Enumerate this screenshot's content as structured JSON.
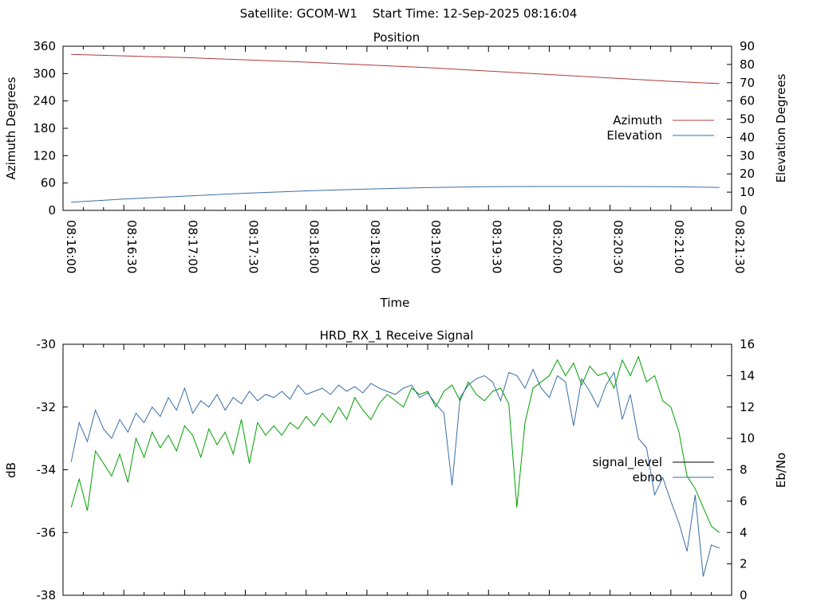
{
  "header": {
    "title": "Satellite: GCOM-W1    Start Time: 12-Sep-2025 08:16:04"
  },
  "colors": {
    "azimuth": "#b03a3a",
    "elevation": "#3a6ea5",
    "signal_level": "#00a000",
    "ebno": "#3a6ea5",
    "legend_signal": "#000000"
  },
  "chart_data": [
    {
      "type": "line",
      "title": "Position",
      "xlabel": "Time",
      "ylabel": "Azimuth Degrees",
      "y2label": "Elevation Degrees",
      "xlim": [
        0,
        330
      ],
      "ylim": [
        0,
        360
      ],
      "y2lim": [
        0,
        90
      ],
      "x_tick_labels": [
        "08:16:00",
        "08:16:30",
        "08:17:00",
        "08:17:30",
        "08:18:00",
        "08:18:30",
        "08:19:00",
        "08:19:30",
        "08:20:00",
        "08:20:30",
        "08:21:00",
        "08:21:30"
      ],
      "y_tick_labels": [
        "0",
        "60",
        "120",
        "180",
        "240",
        "300",
        "360"
      ],
      "y2_tick_labels": [
        "0",
        "10",
        "20",
        "30",
        "40",
        "50",
        "60",
        "70",
        "80",
        "90"
      ],
      "legend_position": "right",
      "series": [
        {
          "name": "Azimuth",
          "axis": "y",
          "x": [
            4,
            60,
            120,
            180,
            240,
            300,
            324
          ],
          "y": [
            342,
            335,
            325,
            313,
            298,
            283,
            278
          ]
        },
        {
          "name": "Elevation",
          "axis": "y2",
          "x": [
            4,
            30,
            60,
            90,
            120,
            150,
            180,
            210,
            240,
            270,
            300,
            324
          ],
          "y": [
            4.5,
            6.2,
            7.8,
            9.4,
            10.7,
            11.7,
            12.5,
            13.0,
            13.1,
            13.1,
            13.0,
            12.6
          ]
        }
      ]
    },
    {
      "type": "line",
      "title": "HRD_RX_1 Receive Signal",
      "xlabel": "",
      "ylabel": "dB",
      "y2label": "Eb/No",
      "xlim": [
        0,
        330
      ],
      "ylim": [
        -38,
        -30
      ],
      "y2lim": [
        0,
        16
      ],
      "y_tick_labels": [
        "-38",
        "-36",
        "-34",
        "-32",
        "-30"
      ],
      "y2_tick_labels": [
        "0",
        "2",
        "4",
        "6",
        "8",
        "10",
        "12",
        "14",
        "16"
      ],
      "legend_position": "right",
      "series": [
        {
          "name": "signal_level",
          "axis": "y",
          "x": [
            4,
            8,
            12,
            16,
            20,
            24,
            28,
            32,
            36,
            40,
            44,
            48,
            52,
            56,
            60,
            64,
            68,
            72,
            76,
            80,
            84,
            88,
            92,
            96,
            100,
            104,
            108,
            112,
            116,
            120,
            124,
            128,
            132,
            136,
            140,
            144,
            148,
            152,
            156,
            160,
            164,
            168,
            172,
            176,
            180,
            184,
            188,
            192,
            196,
            200,
            204,
            208,
            212,
            216,
            220,
            224,
            228,
            232,
            236,
            240,
            244,
            248,
            252,
            256,
            260,
            264,
            268,
            272,
            276,
            280,
            284,
            288,
            292,
            296,
            300,
            304,
            308,
            312,
            316,
            320,
            324
          ],
          "y": [
            -35.2,
            -34.3,
            -35.3,
            -33.4,
            -33.8,
            -34.2,
            -33.5,
            -34.4,
            -33.0,
            -33.6,
            -32.8,
            -33.3,
            -32.9,
            -33.4,
            -32.6,
            -32.9,
            -33.6,
            -32.7,
            -33.2,
            -32.8,
            -33.5,
            -32.4,
            -33.8,
            -32.5,
            -32.9,
            -32.6,
            -32.9,
            -32.5,
            -32.7,
            -32.3,
            -32.6,
            -32.2,
            -32.5,
            -32.0,
            -32.4,
            -31.7,
            -32.1,
            -32.4,
            -31.9,
            -31.6,
            -31.8,
            -32.0,
            -31.4,
            -31.6,
            -31.5,
            -32.0,
            -31.5,
            -31.3,
            -31.8,
            -31.2,
            -31.6,
            -31.8,
            -31.5,
            -31.4,
            -31.9,
            -35.2,
            -32.5,
            -31.4,
            -31.2,
            -31.0,
            -30.5,
            -31.0,
            -30.6,
            -31.3,
            -30.7,
            -31.0,
            -30.9,
            -31.4,
            -30.5,
            -31.0,
            -30.4,
            -31.2,
            -31.0,
            -31.8,
            -32.0,
            -32.8,
            -34.2,
            -34.6,
            -35.2,
            -35.8,
            -36.0
          ]
        },
        {
          "name": "ebno",
          "axis": "y2",
          "x": [
            4,
            8,
            12,
            16,
            20,
            24,
            28,
            32,
            36,
            40,
            44,
            48,
            52,
            56,
            60,
            64,
            68,
            72,
            76,
            80,
            84,
            88,
            92,
            96,
            100,
            104,
            108,
            112,
            116,
            120,
            124,
            128,
            132,
            136,
            140,
            144,
            148,
            152,
            156,
            160,
            164,
            168,
            172,
            176,
            180,
            184,
            188,
            192,
            196,
            200,
            204,
            208,
            212,
            216,
            220,
            224,
            228,
            232,
            236,
            240,
            244,
            248,
            252,
            256,
            260,
            264,
            268,
            272,
            276,
            280,
            284,
            288,
            292,
            296,
            300,
            304,
            308,
            312,
            316,
            320,
            324
          ],
          "y": [
            8.5,
            11.0,
            9.8,
            11.8,
            10.6,
            10.0,
            11.2,
            10.4,
            11.6,
            11.0,
            12.0,
            11.4,
            12.6,
            11.8,
            13.2,
            11.6,
            12.4,
            12.0,
            12.8,
            11.8,
            12.6,
            12.2,
            13.0,
            12.4,
            12.8,
            12.6,
            13.0,
            12.5,
            13.4,
            12.8,
            13.0,
            13.2,
            12.8,
            13.4,
            13.0,
            13.3,
            12.9,
            13.5,
            13.2,
            13.0,
            12.8,
            13.2,
            13.4,
            12.6,
            12.9,
            12.2,
            11.6,
            7.0,
            12.6,
            13.4,
            13.8,
            14.0,
            13.6,
            12.4,
            14.2,
            14.0,
            13.2,
            14.4,
            13.2,
            12.6,
            14.0,
            13.6,
            10.8,
            13.8,
            13.0,
            12.0,
            13.4,
            14.2,
            11.2,
            12.8,
            10.0,
            9.4,
            6.4,
            7.5,
            6.0,
            4.6,
            2.8,
            6.4,
            1.2,
            3.2,
            3.0
          ]
        }
      ]
    }
  ]
}
